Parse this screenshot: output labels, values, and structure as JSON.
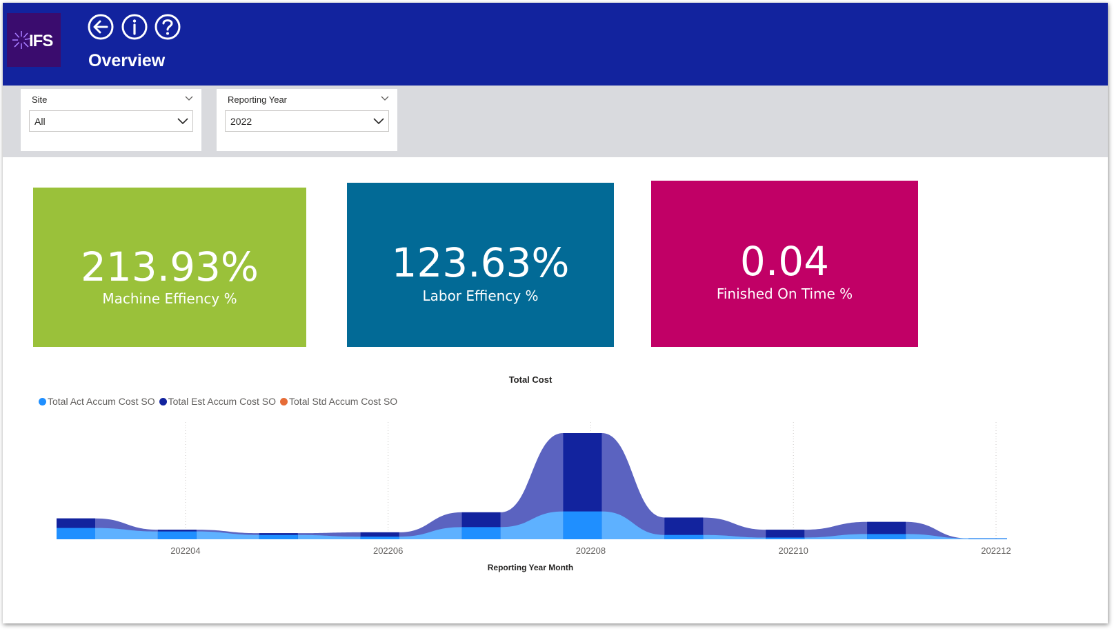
{
  "header": {
    "logo_text": "IFS",
    "title": "Overview",
    "background": "#12239e",
    "buttons": [
      {
        "name": "back-button",
        "icon": "arrow-left-icon"
      },
      {
        "name": "info-button",
        "icon": "info-icon"
      },
      {
        "name": "help-button",
        "icon": "question-icon"
      }
    ]
  },
  "filters": {
    "site": {
      "label": "Site",
      "value": "All"
    },
    "reporting_year": {
      "label": "Reporting Year",
      "value": "2022"
    }
  },
  "kpis": [
    {
      "value": "213.93%",
      "label": "Machine Effiency %",
      "color": "#9ac13a"
    },
    {
      "value": "123.63%",
      "label": "Labor Effiency %",
      "color": "#026a96"
    },
    {
      "value": "0.04",
      "label": "Finished On Time %",
      "color": "#c10066"
    }
  ],
  "chart_data": {
    "type": "area",
    "title": "Total Cost",
    "xlabel": "Reporting Year Month",
    "ylabel": "",
    "x_tick_labels": [
      "202204",
      "202206",
      "202208",
      "202210",
      "202212"
    ],
    "x": [
      "202203",
      "202204",
      "202205",
      "202206",
      "202207",
      "202208",
      "202209",
      "202210",
      "202211",
      "202212"
    ],
    "series": [
      {
        "name": "Total Act Accum Cost SO",
        "color": "#1f8fff",
        "values": [
          13,
          9,
          5,
          3,
          14,
          32,
          5,
          2,
          6,
          1
        ]
      },
      {
        "name": "Total Est Accum Cost SO",
        "color": "#12239e",
        "values": [
          24,
          11,
          7,
          8,
          31,
          122,
          25,
          11,
          20,
          1
        ]
      },
      {
        "name": "Total Std Accum Cost SO",
        "color": "#e66c37",
        "values": [
          0,
          0,
          0,
          0,
          0,
          0,
          0,
          0,
          0,
          0
        ]
      }
    ],
    "grid": true,
    "legend_position": "top-left"
  }
}
